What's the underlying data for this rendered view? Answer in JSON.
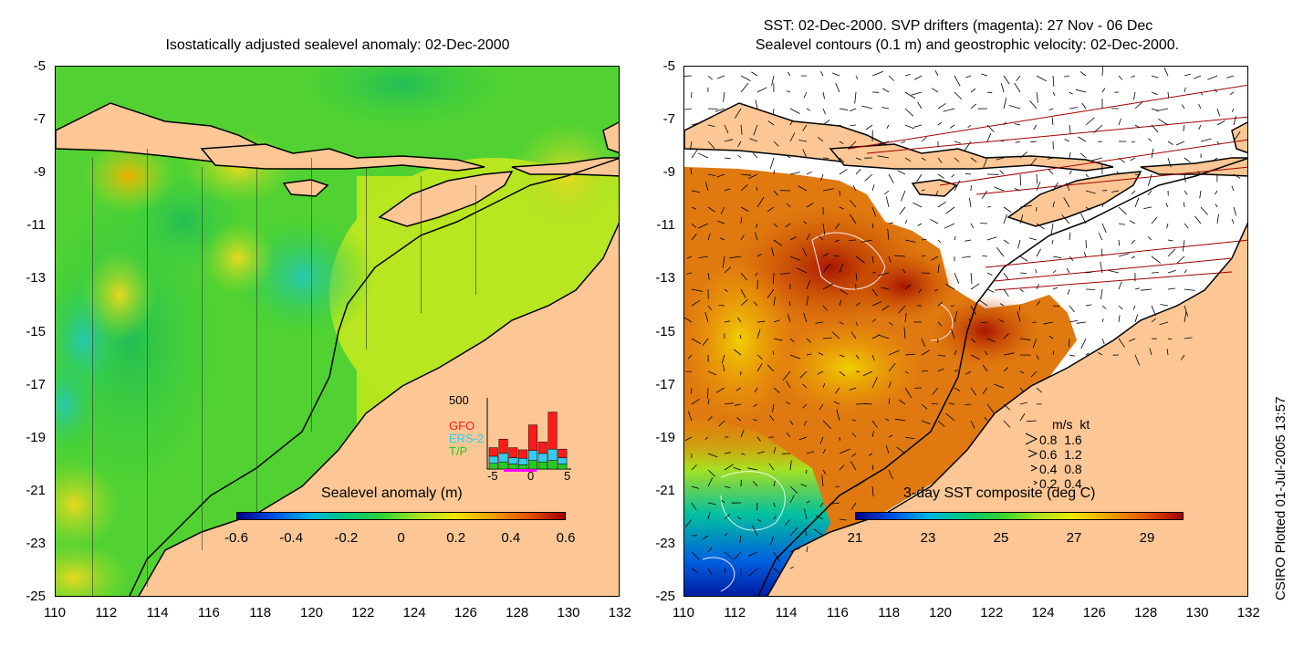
{
  "left": {
    "title": "Isostatically adjusted sealevel anomaly: 02-Dec-2000",
    "y_ticks": [
      "-5",
      "-7",
      "-9",
      "-11",
      "-13",
      "-15",
      "-17",
      "-19",
      "-21",
      "-23",
      "-25"
    ],
    "x_ticks": [
      "110",
      "112",
      "114",
      "116",
      "118",
      "120",
      "122",
      "124",
      "126",
      "128",
      "130",
      "132"
    ],
    "colorbar": {
      "title": "Sealevel anomaly (m)",
      "ticks": [
        "-0.6",
        "-0.4",
        "-0.2",
        "0",
        "0.2",
        "0.4",
        "0.6"
      ],
      "range": [
        -0.6,
        0.6
      ]
    },
    "histogram": {
      "ymax_label": "500",
      "legend": [
        "GFO",
        "ERS-2",
        "T/P"
      ],
      "legend_colors": [
        "#ff1a1a",
        "#33ccee",
        "#22cc22"
      ],
      "x_ticks": [
        "-5",
        "0",
        "5"
      ],
      "bars": [
        {
          "tp": 40,
          "ers": 50,
          "gfo": 60
        },
        {
          "tp": 50,
          "ers": 60,
          "gfo": 100
        },
        {
          "tp": 35,
          "ers": 45,
          "gfo": 70
        },
        {
          "tp": 30,
          "ers": 45,
          "gfo": 60
        },
        {
          "tp": 60,
          "ers": 70,
          "gfo": 180
        },
        {
          "tp": 50,
          "ers": 60,
          "gfo": 80
        },
        {
          "tp": 60,
          "ers": 80,
          "gfo": 260
        },
        {
          "tp": 35,
          "ers": 45,
          "gfo": 60
        }
      ]
    }
  },
  "right": {
    "title_line1": "SST: 02-Dec-2000. SVP drifters (magenta): 27 Nov - 06 Dec",
    "title_line2": "Sealevel contours (0.1 m) and geostrophic velocity: 02-Dec-2000.",
    "y_ticks": [
      "-5",
      "-7",
      "-9",
      "-11",
      "-13",
      "-15",
      "-17",
      "-19",
      "-21",
      "-23",
      "-25"
    ],
    "x_ticks": [
      "110",
      "112",
      "114",
      "116",
      "118",
      "120",
      "122",
      "124",
      "126",
      "128",
      "130",
      "132"
    ],
    "colorbar": {
      "title": "3-day SST composite (deg C)",
      "ticks": [
        "21",
        "23",
        "25",
        "27",
        "29"
      ],
      "range": [
        21,
        30
      ]
    },
    "velocity_key": {
      "header": "m/s  kt",
      "rows": [
        "0.8  1.6",
        "0.6  1.2",
        "0.4  0.8",
        "0.2  0.4"
      ]
    }
  },
  "credit": "CSIRO Plotted 01-Jul-2005 13:57",
  "colors": {
    "land": "#fcc795",
    "sla_scale": [
      "#00008b",
      "#0050e6",
      "#00b4e6",
      "#00c87a",
      "#32d232",
      "#a8e61e",
      "#f0e60a",
      "#f0a000",
      "#e65000",
      "#a00000"
    ],
    "sst_scale": [
      "#00008b",
      "#0050e6",
      "#00b4e6",
      "#00c87a",
      "#32d232",
      "#a8e61e",
      "#f0e60a",
      "#f0a000",
      "#e65000",
      "#a00000"
    ]
  }
}
